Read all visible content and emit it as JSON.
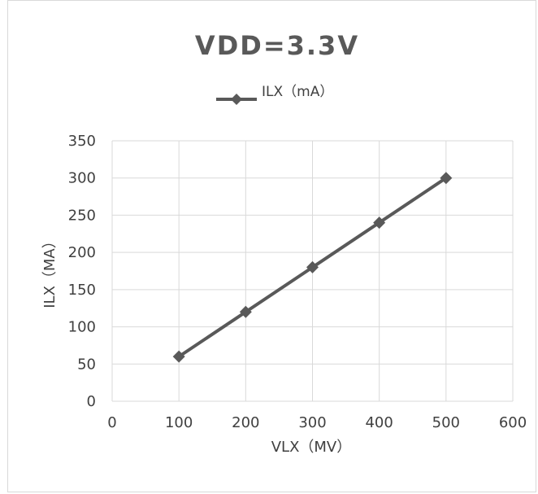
{
  "chart_data": {
    "type": "line",
    "title": "VDD=3.3V",
    "xlabel": "VLX（MV）",
    "ylabel": "ILX（MA）",
    "xlim": [
      0,
      600
    ],
    "ylim": [
      0,
      350
    ],
    "xticks": [
      0,
      100,
      200,
      300,
      400,
      500,
      600
    ],
    "yticks": [
      0,
      50,
      100,
      150,
      200,
      250,
      300,
      350
    ],
    "xtick_labels": [
      "0",
      "100",
      "200",
      "300",
      "400",
      "500",
      "600"
    ],
    "ytick_labels": [
      "0",
      "50",
      "100",
      "150",
      "200",
      "250",
      "300",
      "350"
    ],
    "grid": true,
    "legend_position": "top",
    "series": [
      {
        "name": "ILX（mA）",
        "color": "#595959",
        "marker": "diamond",
        "x": [
          100,
          200,
          300,
          400,
          500
        ],
        "y": [
          60,
          120,
          180,
          240,
          300
        ]
      }
    ]
  }
}
